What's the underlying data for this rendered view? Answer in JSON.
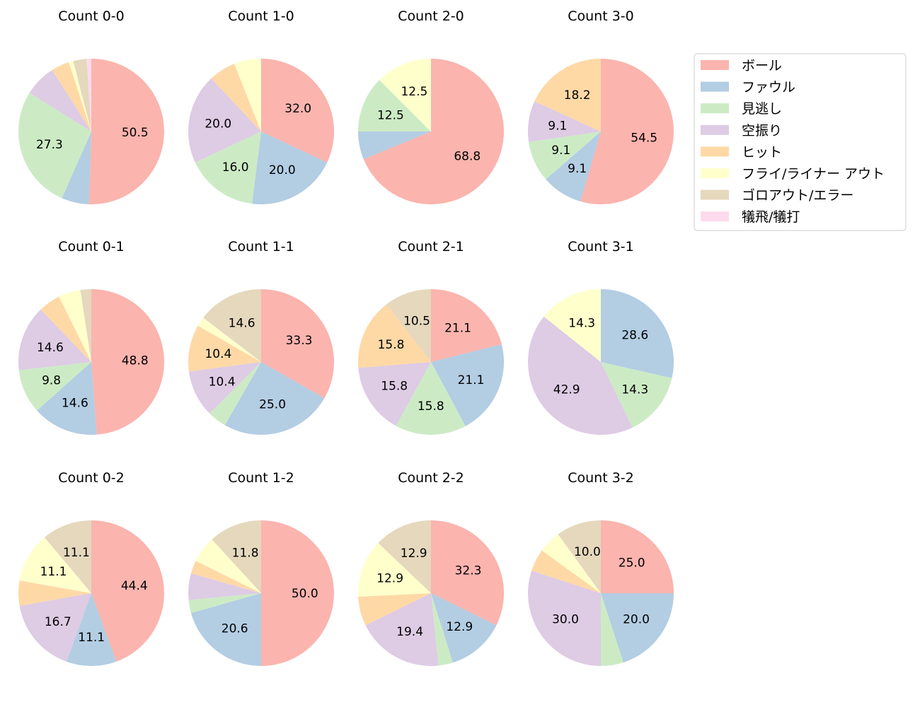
{
  "legend": {
    "entries": [
      {
        "label": "ボール",
        "color": "#fbb4ae"
      },
      {
        "label": "ファウル",
        "color": "#b3cde3"
      },
      {
        "label": "見逃し",
        "color": "#ccebc5"
      },
      {
        "label": "空振り",
        "color": "#decbe4"
      },
      {
        "label": "ヒット",
        "color": "#fed9a6"
      },
      {
        "label": "フライ/ライナー アウト",
        "color": "#ffffcc"
      },
      {
        "label": "ゴロアウト/エラー",
        "color": "#e5d8bd"
      },
      {
        "label": "犠飛/犠打",
        "color": "#fddaec"
      }
    ]
  },
  "chart_data": [
    {
      "type": "pie",
      "title": "Count 0-0",
      "values": [
        50.5,
        6.1,
        27.3,
        7.1,
        4.0,
        1.0,
        3.0,
        1.0
      ],
      "labels": [
        "50.5",
        "",
        "27.3",
        "",
        "",
        "",
        "",
        ""
      ]
    },
    {
      "type": "pie",
      "title": "Count 1-0",
      "values": [
        32.0,
        20.0,
        16.0,
        20.0,
        6.0,
        6.0,
        0,
        0
      ],
      "labels": [
        "32.0",
        "20.0",
        "16.0",
        "20.0",
        "",
        "",
        "",
        ""
      ]
    },
    {
      "type": "pie",
      "title": "Count 2-0",
      "values": [
        68.8,
        6.2,
        12.5,
        0,
        0,
        12.5,
        0,
        0
      ],
      "labels": [
        "68.8",
        "",
        "12.5",
        "",
        "",
        "12.5",
        "",
        ""
      ]
    },
    {
      "type": "pie",
      "title": "Count 3-0",
      "values": [
        54.5,
        9.1,
        9.1,
        9.1,
        18.2,
        0,
        0,
        0
      ],
      "labels": [
        "54.5",
        "9.1",
        "9.1",
        "9.1",
        "18.2",
        "",
        "",
        ""
      ]
    },
    {
      "type": "pie",
      "title": "Count 0-1",
      "values": [
        48.8,
        14.6,
        9.8,
        14.6,
        4.9,
        4.9,
        2.4,
        0
      ],
      "labels": [
        "48.8",
        "14.6",
        "9.8",
        "14.6",
        "",
        "",
        "",
        ""
      ]
    },
    {
      "type": "pie",
      "title": "Count 1-1",
      "values": [
        33.3,
        25.0,
        4.2,
        10.4,
        10.4,
        2.1,
        14.6,
        0
      ],
      "labels": [
        "33.3",
        "25.0",
        "",
        "10.4",
        "10.4",
        "",
        "14.6",
        ""
      ]
    },
    {
      "type": "pie",
      "title": "Count 2-1",
      "values": [
        21.1,
        21.1,
        15.8,
        15.8,
        15.8,
        0,
        10.5,
        0
      ],
      "labels": [
        "21.1",
        "21.1",
        "15.8",
        "15.8",
        "15.8",
        "",
        "10.5",
        ""
      ]
    },
    {
      "type": "pie",
      "title": "Count 3-1",
      "values": [
        0,
        28.6,
        14.3,
        42.9,
        0,
        14.3,
        0,
        0
      ],
      "labels": [
        "",
        "28.6",
        "14.3",
        "42.9",
        "",
        "14.3",
        "",
        ""
      ]
    },
    {
      "type": "pie",
      "title": "Count 0-2",
      "values": [
        44.4,
        11.1,
        0,
        16.7,
        5.6,
        11.1,
        11.1,
        0
      ],
      "labels": [
        "44.4",
        "11.1",
        "",
        "16.7",
        "",
        "11.1",
        "11.1",
        ""
      ]
    },
    {
      "type": "pie",
      "title": "Count 1-2",
      "values": [
        50.0,
        20.6,
        2.9,
        5.9,
        2.9,
        5.9,
        11.8,
        0
      ],
      "labels": [
        "50.0",
        "20.6",
        "",
        "",
        "",
        "",
        "11.8",
        ""
      ]
    },
    {
      "type": "pie",
      "title": "Count 2-2",
      "values": [
        32.3,
        12.9,
        3.2,
        19.4,
        6.5,
        12.9,
        12.9,
        0
      ],
      "labels": [
        "32.3",
        "12.9",
        "",
        "19.4",
        "",
        "12.9",
        "12.9",
        ""
      ]
    },
    {
      "type": "pie",
      "title": "Count 3-2",
      "values": [
        25.0,
        20.0,
        5.0,
        30.0,
        5.0,
        5.0,
        10.0,
        0
      ],
      "labels": [
        "25.0",
        "20.0",
        "",
        "30.0",
        "",
        "",
        "10.0",
        ""
      ]
    }
  ]
}
